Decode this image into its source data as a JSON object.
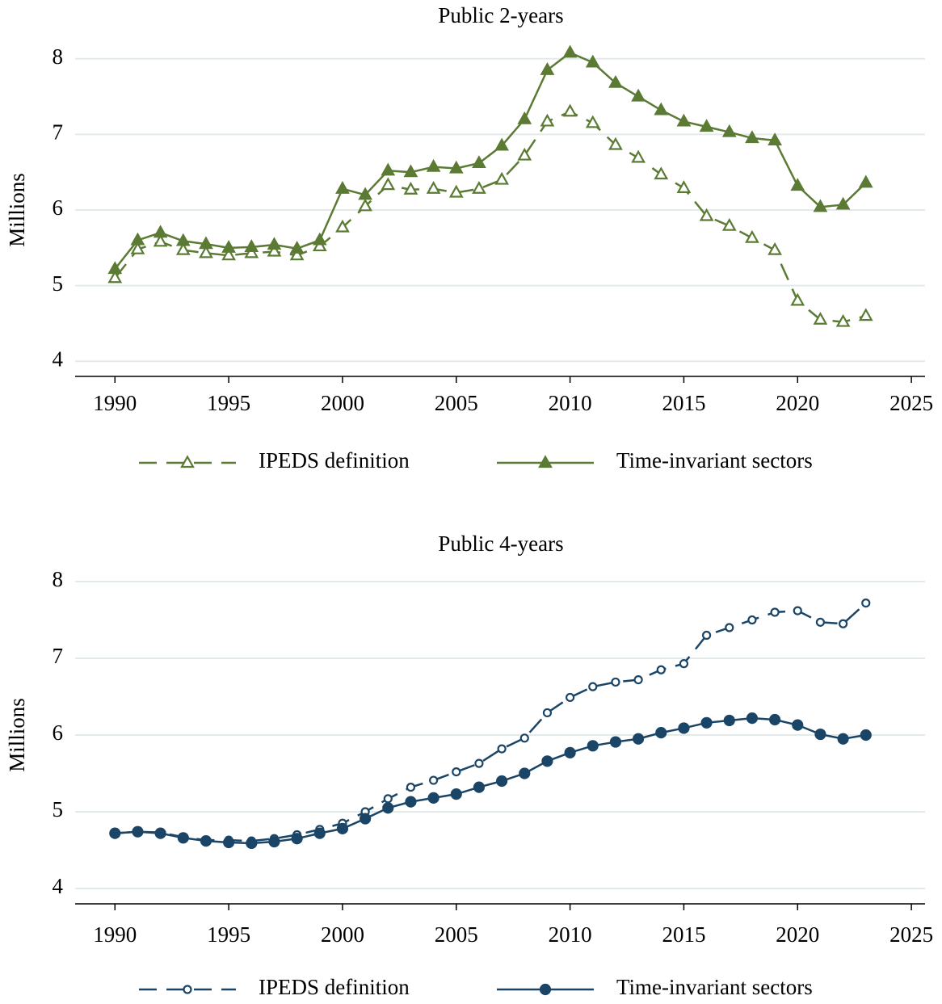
{
  "chart_data": [
    {
      "type": "line",
      "title": "Public 2-years",
      "y_label": "Millions",
      "x": [
        1990,
        1991,
        1992,
        1993,
        1994,
        1995,
        1996,
        1997,
        1998,
        1999,
        2000,
        2001,
        2002,
        2003,
        2004,
        2005,
        2006,
        2007,
        2008,
        2009,
        2010,
        2011,
        2012,
        2013,
        2014,
        2015,
        2016,
        2017,
        2018,
        2019,
        2020,
        2021,
        2022,
        2023
      ],
      "xlim": [
        1988.25,
        2025.6
      ],
      "xticks": [
        1990,
        1995,
        2000,
        2005,
        2010,
        2015,
        2020,
        2025
      ],
      "ylim": [
        3.8,
        8.2
      ],
      "yticks": [
        4,
        5,
        6,
        7,
        8
      ],
      "grid": true,
      "series": [
        {
          "name": "IPEDS definition",
          "color": "#5b7b34",
          "marker": "triangle",
          "filled": false,
          "dashed": true,
          "values": [
            5.1,
            5.48,
            5.58,
            5.47,
            5.43,
            5.4,
            5.43,
            5.45,
            5.4,
            5.52,
            5.77,
            6.05,
            6.33,
            6.27,
            6.28,
            6.23,
            6.28,
            6.4,
            6.72,
            7.17,
            7.3,
            7.15,
            6.86,
            6.69,
            6.47,
            6.29,
            5.92,
            5.79,
            5.63,
            5.47,
            4.8,
            4.55,
            4.52,
            4.6
          ]
        },
        {
          "name": "Time-invariant sectors",
          "color": "#5b7b34",
          "marker": "triangle",
          "filled": true,
          "dashed": false,
          "values": [
            5.22,
            5.6,
            5.7,
            5.59,
            5.55,
            5.5,
            5.51,
            5.54,
            5.49,
            5.6,
            6.28,
            6.2,
            6.52,
            6.5,
            6.57,
            6.55,
            6.62,
            6.85,
            7.2,
            7.85,
            8.08,
            7.95,
            7.68,
            7.5,
            7.32,
            7.17,
            7.1,
            7.03,
            6.95,
            6.92,
            6.32,
            6.04,
            6.07,
            6.36
          ]
        }
      ]
    },
    {
      "type": "line",
      "title": "Public 4-years",
      "y_label": "Millions",
      "x": [
        1990,
        1991,
        1992,
        1993,
        1994,
        1995,
        1996,
        1997,
        1998,
        1999,
        2000,
        2001,
        2002,
        2003,
        2004,
        2005,
        2006,
        2007,
        2008,
        2009,
        2010,
        2011,
        2012,
        2013,
        2014,
        2015,
        2016,
        2017,
        2018,
        2019,
        2020,
        2021,
        2022,
        2023
      ],
      "xlim": [
        1988.25,
        2025.6
      ],
      "xticks": [
        1990,
        1995,
        2000,
        2005,
        2010,
        2015,
        2020,
        2025
      ],
      "ylim": [
        3.8,
        8.2
      ],
      "yticks": [
        4,
        5,
        6,
        7,
        8
      ],
      "grid": true,
      "series": [
        {
          "name": "IPEDS definition",
          "color": "#1b4566",
          "marker": "circle",
          "filled": false,
          "dashed": true,
          "values": [
            4.72,
            4.74,
            4.73,
            4.67,
            4.63,
            4.63,
            4.62,
            4.65,
            4.7,
            4.77,
            4.85,
            5.0,
            5.17,
            5.32,
            5.41,
            5.52,
            5.63,
            5.82,
            5.96,
            6.29,
            6.49,
            6.63,
            6.69,
            6.72,
            6.85,
            6.93,
            7.3,
            7.4,
            7.5,
            7.6,
            7.62,
            7.47,
            7.45,
            7.72
          ]
        },
        {
          "name": "Time-invariant sectors",
          "color": "#1b4566",
          "marker": "circle",
          "filled": true,
          "dashed": false,
          "values": [
            4.72,
            4.74,
            4.72,
            4.66,
            4.62,
            4.6,
            4.59,
            4.61,
            4.65,
            4.72,
            4.78,
            4.91,
            5.05,
            5.13,
            5.18,
            5.23,
            5.32,
            5.4,
            5.5,
            5.66,
            5.77,
            5.86,
            5.91,
            5.95,
            6.03,
            6.09,
            6.16,
            6.19,
            6.22,
            6.2,
            6.13,
            6.01,
            5.95,
            6.0
          ]
        }
      ]
    }
  ]
}
